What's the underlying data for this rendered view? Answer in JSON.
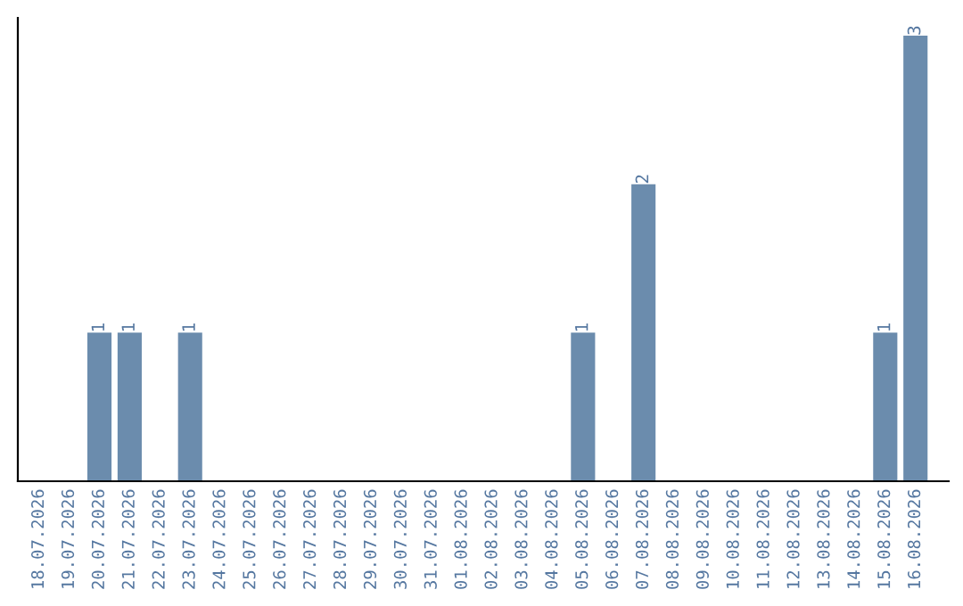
{
  "chart_data": {
    "type": "bar",
    "categories": [
      "18.07.2026",
      "19.07.2026",
      "20.07.2026",
      "21.07.2026",
      "22.07.2026",
      "23.07.2026",
      "24.07.2026",
      "25.07.2026",
      "26.07.2026",
      "27.07.2026",
      "28.07.2026",
      "29.07.2026",
      "30.07.2026",
      "31.07.2026",
      "01.08.2026",
      "02.08.2026",
      "03.08.2026",
      "04.08.2026",
      "05.08.2026",
      "06.08.2026",
      "07.08.2026",
      "08.08.2026",
      "09.08.2026",
      "10.08.2026",
      "11.08.2026",
      "12.08.2026",
      "13.08.2026",
      "14.08.2026",
      "15.08.2026",
      "16.08.2026"
    ],
    "values": [
      0,
      0,
      1,
      1,
      0,
      1,
      0,
      0,
      0,
      0,
      0,
      0,
      0,
      0,
      0,
      0,
      0,
      0,
      1,
      0,
      2,
      0,
      0,
      0,
      0,
      0,
      0,
      0,
      1,
      3
    ],
    "value_labels": [
      null,
      null,
      "1",
      "1",
      null,
      "1",
      null,
      null,
      null,
      null,
      null,
      null,
      null,
      null,
      null,
      null,
      null,
      null,
      "1",
      null,
      "2",
      null,
      null,
      null,
      null,
      null,
      null,
      null,
      "1",
      "3"
    ],
    "color": "#6b8cad",
    "tick_labels": "x",
    "grid": false,
    "legend": false
  }
}
